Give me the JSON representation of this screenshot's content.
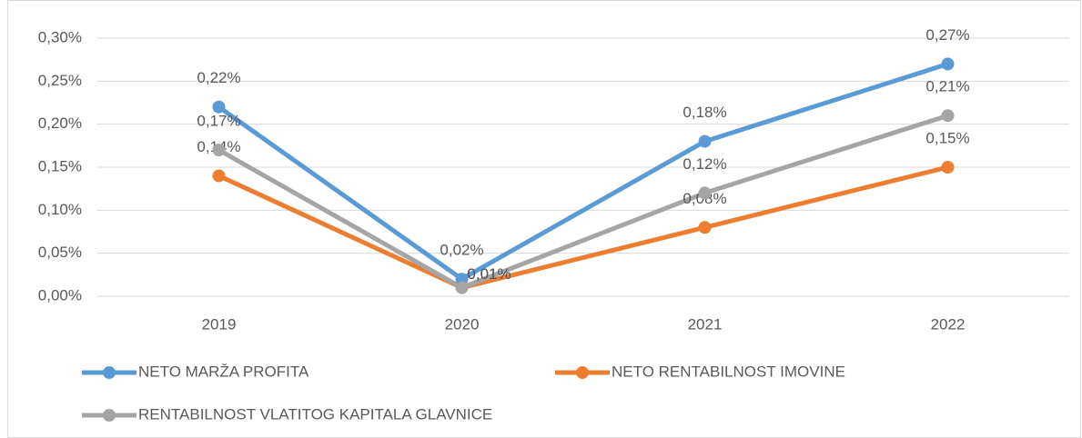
{
  "chart_data": {
    "type": "line",
    "categories": [
      "2019",
      "2020",
      "2021",
      "2022"
    ],
    "series": [
      {
        "name": "NETO MARŽA PROFITA",
        "color": "#5b9bd5",
        "values": [
          0.22,
          0.02,
          0.18,
          0.27
        ],
        "value_labels": [
          "0,22%",
          "0,02%",
          "0,18%",
          "0,27%"
        ]
      },
      {
        "name": "NETO RENTABILNOST IMOVINE",
        "color": "#ed7d31",
        "values": [
          0.14,
          0.01,
          0.08,
          0.15
        ],
        "value_labels": [
          "0,14%",
          "0,01%",
          "0,08%",
          "0,15%"
        ]
      },
      {
        "name": "RENTABILNOST VLATITOG KAPITALA GLAVNICE",
        "color": "#a5a5a5",
        "values": [
          0.17,
          0.01,
          0.12,
          0.21
        ],
        "value_labels": [
          "0,17%",
          "0,01%",
          "0,12%",
          "0,21%"
        ]
      }
    ],
    "ylim": [
      0,
      0.3
    ],
    "yticks": [
      {
        "value": 0,
        "label": "0,00%"
      },
      {
        "value": 0.05,
        "label": "0,05%"
      },
      {
        "value": 0.1,
        "label": "0,10%"
      },
      {
        "value": 0.15,
        "label": "0,15%"
      },
      {
        "value": 0.2,
        "label": "0,20%"
      },
      {
        "value": 0.25,
        "label": "0,25%"
      },
      {
        "value": 0.3,
        "label": "0,30%"
      }
    ],
    "grid": true,
    "legend": "bottom"
  }
}
